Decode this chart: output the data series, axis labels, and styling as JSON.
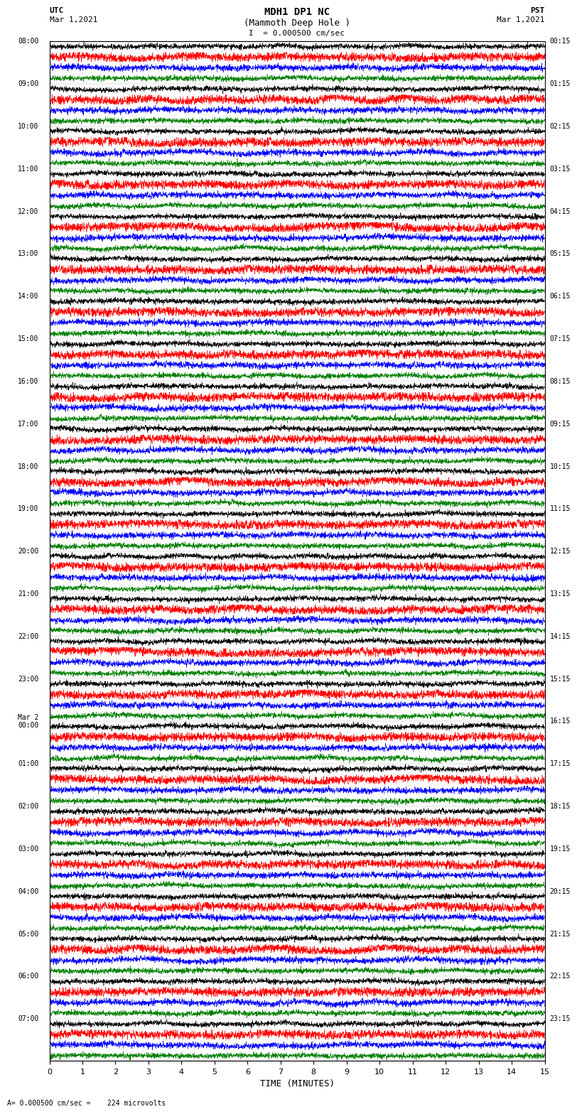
{
  "title_line1": "MDH1 DP1 NC",
  "title_line2": "(Mammoth Deep Hole )",
  "title_line3": "I  = 0.000500 cm/sec",
  "left_label": "UTC",
  "left_date": "Mar 1,2021",
  "right_label": "PST",
  "right_date": "Mar 1,2021",
  "xlabel": "TIME (MINUTES)",
  "bottom_note": "= 0.000500 cm/sec =    224 microvolts",
  "utc_labels": [
    "08:00",
    "09:00",
    "10:00",
    "11:00",
    "12:00",
    "13:00",
    "14:00",
    "15:00",
    "16:00",
    "17:00",
    "18:00",
    "19:00",
    "20:00",
    "21:00",
    "22:00",
    "23:00",
    "Mar 2\n00:00",
    "01:00",
    "02:00",
    "03:00",
    "04:00",
    "05:00",
    "06:00",
    "07:00"
  ],
  "pst_labels": [
    "00:15",
    "01:15",
    "02:15",
    "03:15",
    "04:15",
    "05:15",
    "06:15",
    "07:15",
    "08:15",
    "09:15",
    "10:15",
    "11:15",
    "12:15",
    "13:15",
    "14:15",
    "15:15",
    "16:15",
    "17:15",
    "18:15",
    "19:15",
    "20:15",
    "21:15",
    "22:15",
    "23:15"
  ],
  "n_rows": 24,
  "traces_per_row": 4,
  "trace_colors": [
    "black",
    "red",
    "blue",
    "green"
  ],
  "xmin": 0,
  "xmax": 15,
  "bg_color": "white",
  "trace_linewidth": 0.4,
  "noise_scale": [
    0.3,
    0.5,
    0.35,
    0.3
  ],
  "seed": 42
}
